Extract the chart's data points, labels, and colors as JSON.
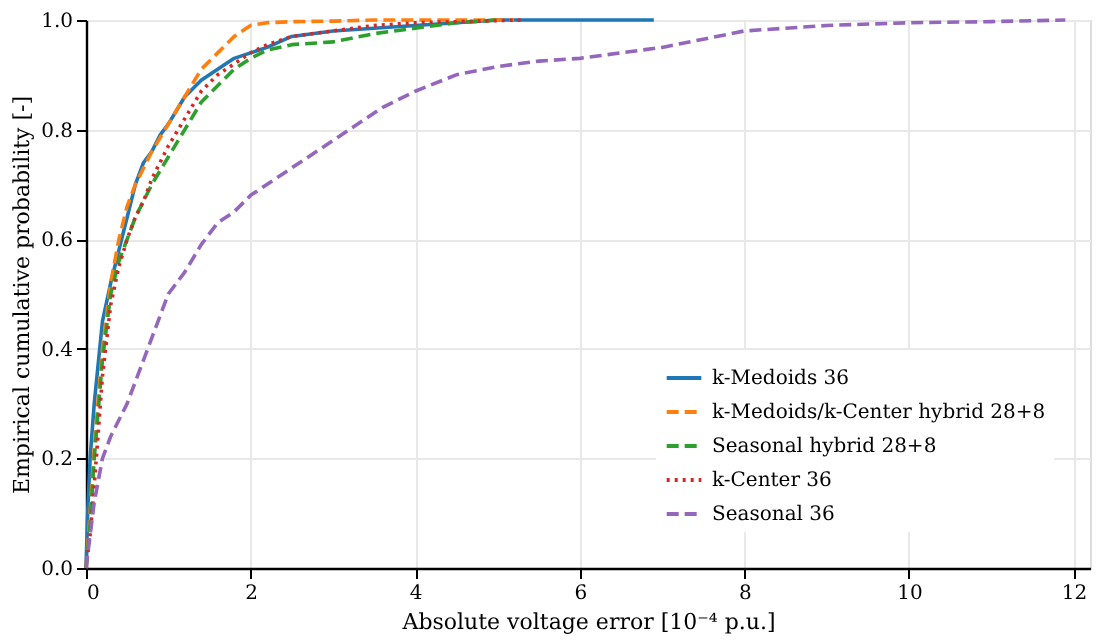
{
  "chart_data": {
    "type": "line",
    "xlabel": "Absolute voltage error [10⁻⁴ p.u.]",
    "ylabel": "Empirical cumulative probability [-]",
    "xlim": [
      0,
      12.2
    ],
    "xticks": [
      0,
      2,
      4,
      6,
      8,
      10,
      12
    ],
    "ylim": [
      0,
      1
    ],
    "yticks": [
      {
        "value": 0,
        "label": "0.0"
      },
      {
        "value": 0.2,
        "label": "0.2"
      },
      {
        "value": 0.4,
        "label": "0.4"
      },
      {
        "value": 0.6,
        "label": "0.6"
      },
      {
        "value": 0.8,
        "label": "0.8"
      },
      {
        "value": 1,
        "label": "1.0"
      }
    ],
    "grid": true,
    "legend": "bottom right",
    "marker": "none",
    "series": [
      {
        "name": "k-Medoids 36",
        "color": "#1f77b4",
        "line_style": "solid",
        "x": [
          0,
          0.02,
          0.05,
          0.1,
          0.2,
          0.3,
          0.4,
          0.5,
          0.6,
          0.7,
          0.8,
          0.9,
          1.0,
          1.2,
          1.4,
          1.6,
          1.8,
          2.0,
          2.2,
          2.5,
          3.0,
          3.5,
          4.0,
          4.5,
          5.0,
          6.0,
          6.9
        ],
        "values": [
          0,
          0.1,
          0.2,
          0.3,
          0.45,
          0.52,
          0.58,
          0.64,
          0.7,
          0.74,
          0.76,
          0.79,
          0.81,
          0.86,
          0.89,
          0.91,
          0.93,
          0.94,
          0.95,
          0.97,
          0.98,
          0.985,
          0.99,
          0.995,
          1.0,
          1.0,
          1.0
        ]
      },
      {
        "name": "k-Medoids/k-Center hybrid 28+8",
        "color": "#ff7f0e",
        "line_style": "dashed",
        "x": [
          0,
          0.05,
          0.1,
          0.2,
          0.3,
          0.4,
          0.5,
          0.6,
          0.7,
          0.8,
          1.0,
          1.2,
          1.4,
          1.6,
          1.8,
          2.0,
          2.2,
          2.5,
          3.0,
          3.5,
          4.0,
          5.2
        ],
        "values": [
          0,
          0.1,
          0.22,
          0.4,
          0.52,
          0.6,
          0.66,
          0.7,
          0.73,
          0.76,
          0.81,
          0.86,
          0.91,
          0.94,
          0.97,
          0.99,
          0.995,
          0.997,
          0.998,
          1.0,
          1.0,
          1.0
        ]
      },
      {
        "name": "Seasonal hybrid 28+8",
        "color": "#2ca02c",
        "line_style": "dashed",
        "x": [
          0,
          0.05,
          0.1,
          0.2,
          0.3,
          0.4,
          0.5,
          0.6,
          0.7,
          0.8,
          1.0,
          1.2,
          1.4,
          1.6,
          1.8,
          2.0,
          2.2,
          2.5,
          3.0,
          3.5,
          4.0,
          4.5,
          5.0
        ],
        "values": [
          0,
          0.08,
          0.2,
          0.38,
          0.5,
          0.56,
          0.6,
          0.64,
          0.67,
          0.7,
          0.75,
          0.8,
          0.85,
          0.88,
          0.91,
          0.93,
          0.945,
          0.955,
          0.96,
          0.975,
          0.985,
          0.995,
          1.0
        ]
      },
      {
        "name": "k-Center 36",
        "color": "#d62728",
        "line_style": "dotted",
        "x": [
          0,
          0.05,
          0.1,
          0.2,
          0.3,
          0.4,
          0.5,
          0.6,
          0.7,
          0.8,
          1.0,
          1.2,
          1.4,
          1.6,
          1.8,
          2.0,
          2.2,
          2.5,
          3.0,
          3.5,
          4.0,
          5.3
        ],
        "values": [
          0,
          0.06,
          0.15,
          0.35,
          0.48,
          0.55,
          0.6,
          0.64,
          0.67,
          0.71,
          0.77,
          0.82,
          0.87,
          0.9,
          0.92,
          0.94,
          0.955,
          0.97,
          0.98,
          0.99,
          0.995,
          1.0
        ]
      },
      {
        "name": "Seasonal 36",
        "color": "#9467bd",
        "line_style": "dashed",
        "x": [
          0,
          0.1,
          0.2,
          0.3,
          0.5,
          0.7,
          0.9,
          1.0,
          1.2,
          1.4,
          1.6,
          1.8,
          2.0,
          2.4,
          2.8,
          3.2,
          3.6,
          4.0,
          4.5,
          5.0,
          5.5,
          6.0,
          6.5,
          7.0,
          7.5,
          8.0,
          8.5,
          9.0,
          10.0,
          11.0,
          11.9
        ],
        "values": [
          0,
          0.12,
          0.2,
          0.24,
          0.3,
          0.38,
          0.46,
          0.5,
          0.54,
          0.59,
          0.63,
          0.65,
          0.68,
          0.72,
          0.76,
          0.8,
          0.84,
          0.87,
          0.9,
          0.915,
          0.925,
          0.93,
          0.94,
          0.95,
          0.965,
          0.98,
          0.985,
          0.99,
          0.995,
          0.997,
          1.0
        ]
      }
    ]
  }
}
